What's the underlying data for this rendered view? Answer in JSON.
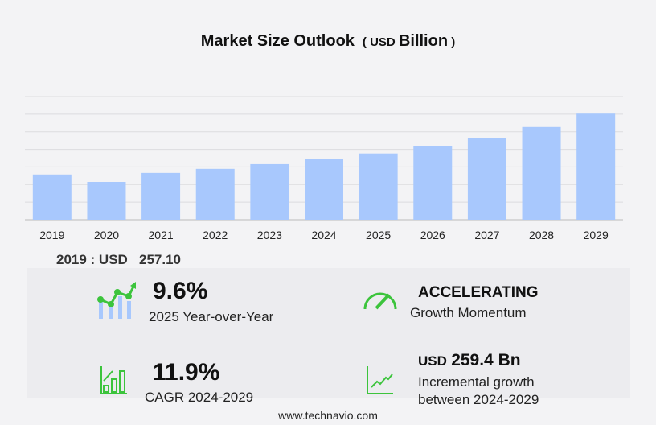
{
  "header": {
    "title": "Market Size Outlook",
    "unit_prefix": "USD",
    "unit": "Billion"
  },
  "chart_data": {
    "type": "bar",
    "title": "Market Size Outlook (USD Billion)",
    "categories": [
      "2019",
      "2020",
      "2021",
      "2022",
      "2023",
      "2024",
      "2025",
      "2026",
      "2027",
      "2028",
      "2029"
    ],
    "values": [
      257.1,
      215,
      266,
      289,
      316,
      343.6,
      376.6,
      417,
      463,
      527,
      603
    ],
    "ylim": [
      0,
      700
    ],
    "grid": true,
    "bar_color": "#a8c8fd",
    "xlabel": "",
    "ylabel": ""
  },
  "base_year": {
    "label": "2019 : USD",
    "value": "257.10"
  },
  "stats": {
    "yoy": {
      "value": "9.6%",
      "label": "2025 Year-over-Year"
    },
    "momentum": {
      "value": "ACCELERATING",
      "label": "Growth Momentum"
    },
    "cagr": {
      "value": "11.9%",
      "label": "CAGR 2024-2029"
    },
    "incremental": {
      "prefix": "USD",
      "value": "259.4 Bn",
      "label1": "Incremental growth",
      "label2": "between 2024-2029"
    }
  },
  "colors": {
    "accent": "#3cc43c",
    "bar": "#a8c8fd"
  },
  "footer": "www.technavio.com"
}
